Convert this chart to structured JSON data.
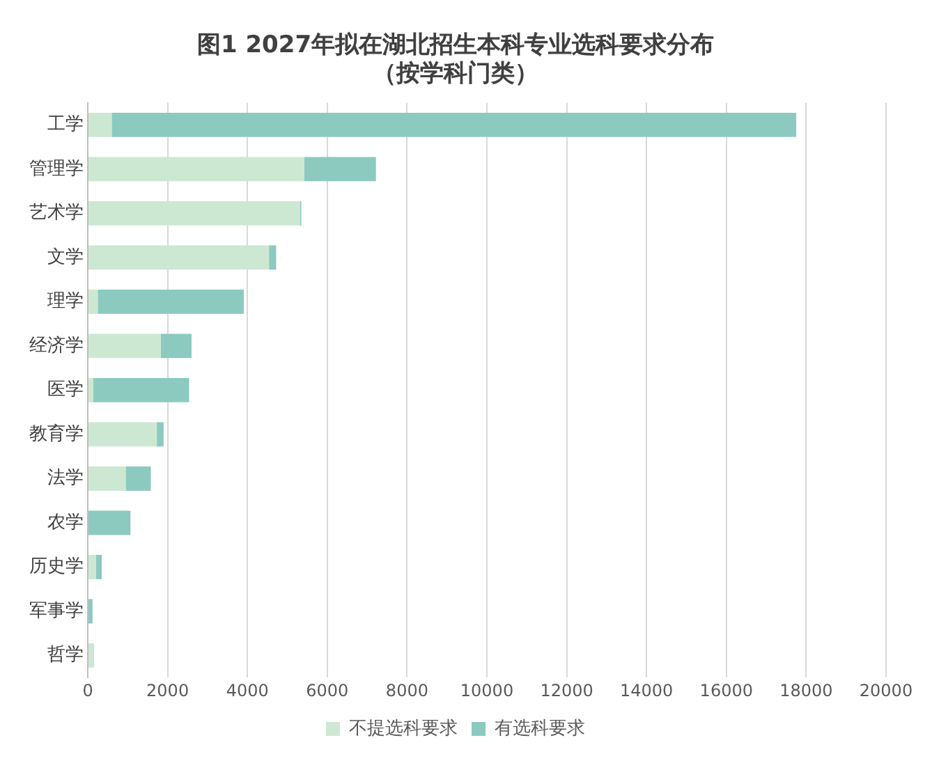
{
  "chart_data": {
    "type": "bar",
    "orientation": "horizontal",
    "stacked": true,
    "title": [
      "图1 2027年拟在湖北招生本科专业选科要求分布",
      "（按学科门类）"
    ],
    "categories": [
      "工学",
      "管理学",
      "艺术学",
      "文学",
      "理学",
      "经济学",
      "医学",
      "教育学",
      "法学",
      "农学",
      "历史学",
      "军事学",
      "哲学"
    ],
    "series": [
      {
        "name": "不提选科要求",
        "color": "#cde8d2",
        "values": [
          600,
          5420,
          5320,
          4540,
          250,
          1830,
          140,
          1730,
          950,
          null,
          210,
          null,
          140
        ]
      },
      {
        "name": "有选科要求",
        "color": "#8ccac0",
        "values": [
          17150,
          1800,
          30,
          180,
          3660,
          770,
          2400,
          170,
          630,
          1070,
          140,
          120,
          10
        ]
      }
    ],
    "xlim": [
      0,
      20000
    ],
    "xticks": [
      0,
      2000,
      4000,
      6000,
      8000,
      10000,
      12000,
      14000,
      16000,
      18000,
      20000
    ],
    "grid": "x",
    "legend": "bottom"
  }
}
